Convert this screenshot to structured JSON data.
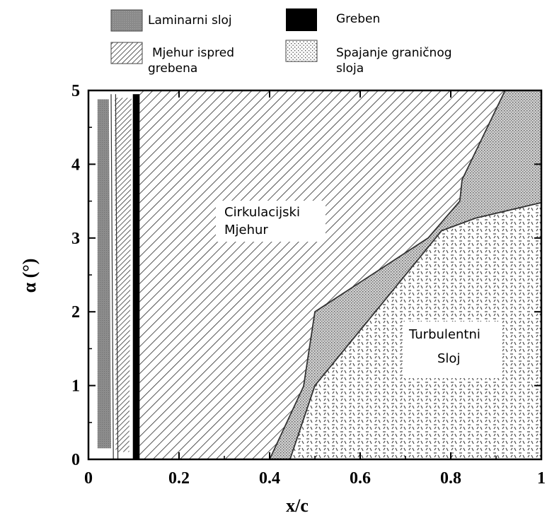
{
  "chart_data": {
    "type": "area",
    "title": "",
    "xlabel": "x/c",
    "ylabel": "α (°)",
    "xlim": [
      0,
      1
    ],
    "ylim": [
      0,
      5
    ],
    "x_ticks": [
      "0",
      "0.2",
      "0.4",
      "0.6",
      "0.8",
      "1"
    ],
    "y_ticks": [
      "0",
      "1",
      "2",
      "3",
      "4",
      "5"
    ],
    "legend": {
      "placement": "top",
      "entries": [
        {
          "key": "laminar",
          "label": "Laminarni sloj",
          "pattern": "solid-gray"
        },
        {
          "key": "ridge",
          "label": "Greben",
          "pattern": "solid-black"
        },
        {
          "key": "bubble_front",
          "label": "Mjehur ispred grebena",
          "pattern": "dense-hatch"
        },
        {
          "key": "reattachment",
          "label": "Spajanje graničnog sloja",
          "pattern": "dots"
        }
      ]
    },
    "regions": [
      {
        "key": "laminar",
        "pattern": "solid-gray",
        "points": [
          [
            0.02,
            0.15
          ],
          [
            0.05,
            0.15
          ],
          [
            0.045,
            4.88
          ],
          [
            0.02,
            4.88
          ]
        ]
      },
      {
        "key": "bubble_front",
        "pattern": "dense-hatch",
        "points": [
          [
            0.06,
            0.1
          ],
          [
            0.09,
            0.1
          ],
          [
            0.095,
            4.9
          ],
          [
            0.058,
            4.9
          ]
        ]
      },
      {
        "key": "ridge",
        "pattern": "solid-black",
        "points": [
          [
            0.098,
            0
          ],
          [
            0.113,
            0
          ],
          [
            0.113,
            4.95
          ],
          [
            0.098,
            4.95
          ]
        ]
      },
      {
        "key": "circulation_bubble",
        "label": "Cirkulacijski Mjehur",
        "pattern": "hatch",
        "boundary": [
          [
            0.4,
            0
          ],
          [
            0.475,
            0.99
          ],
          [
            0.5,
            2.0
          ],
          [
            0.75,
            3.0
          ],
          [
            0.82,
            3.5
          ],
          [
            0.825,
            3.79
          ],
          [
            0.92,
            5.0
          ]
        ]
      },
      {
        "key": "reattachment",
        "pattern": "dots",
        "boundary_upper": [
          [
            0.4,
            0
          ],
          [
            0.475,
            0.99
          ],
          [
            0.5,
            2.0
          ],
          [
            0.75,
            3.0
          ],
          [
            0.82,
            3.5
          ],
          [
            0.825,
            3.79
          ],
          [
            0.92,
            5.0
          ]
        ],
        "boundary_lower": [
          [
            0.445,
            0
          ],
          [
            0.5,
            1.0
          ],
          [
            0.78,
            3.1
          ],
          [
            0.855,
            3.27
          ],
          [
            1.0,
            3.48
          ]
        ]
      },
      {
        "key": "turbulent",
        "label": "Turbulentni Sloj",
        "pattern": "dash",
        "boundary": [
          [
            0.445,
            0
          ],
          [
            0.5,
            1.0
          ],
          [
            0.78,
            3.1
          ],
          [
            0.855,
            3.27
          ],
          [
            1.0,
            3.48
          ]
        ]
      }
    ],
    "annotations": [
      {
        "key": "circulation_bubble",
        "lines": [
          "Cirkulacijski",
          "Mjehur"
        ]
      },
      {
        "key": "turbulent",
        "lines": [
          "Turbulentni",
          "Sloj"
        ]
      }
    ]
  }
}
